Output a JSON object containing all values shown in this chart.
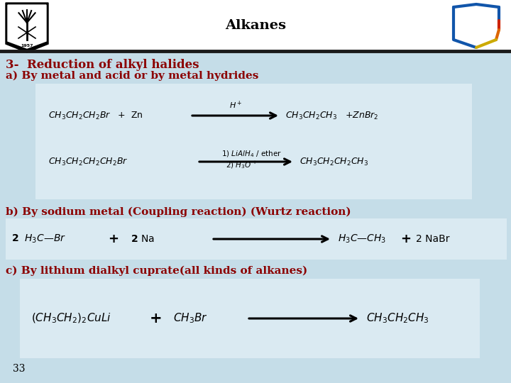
{
  "title": "Alkanes",
  "bg_color": "#c5dde8",
  "header_bg": "#ffffff",
  "box_bg": "#daeaf2",
  "title_color": "#000000",
  "heading1": "3-  Reduction of alkyl halides",
  "heading1_color": "#8B0000",
  "subheading_a": "a) By metal and acid or by metal hydrides",
  "subheading_a_color": "#8B0000",
  "subheading_b": "b) By sodium metal (Coupling reaction) (Wurtz reaction)",
  "subheading_b_color": "#8B0000",
  "subheading_c": "c) By lithium dialkyl cuprate(all kinds of alkanes)",
  "subheading_c_color": "#8B0000",
  "page_num": "33"
}
